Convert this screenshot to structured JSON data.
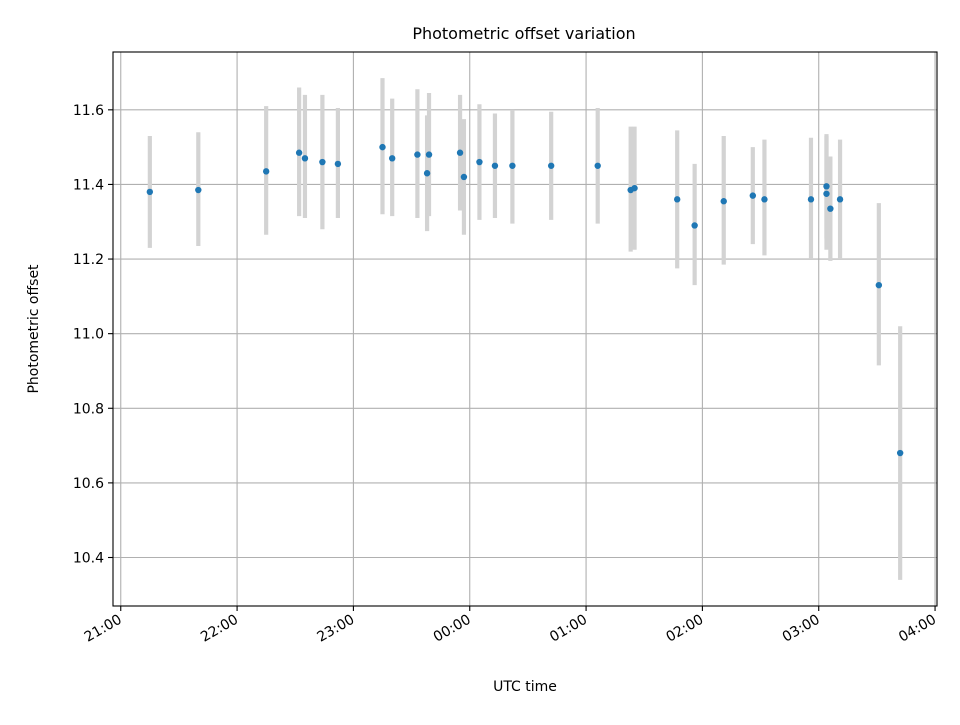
{
  "chart_data": {
    "type": "scatter",
    "title": "Photometric offset variation",
    "xlabel": "UTC time",
    "ylabel": "Photometric offset",
    "grid": true,
    "xlim": [
      "20:56",
      "04:01"
    ],
    "ylim": [
      10.27,
      11.755
    ],
    "x_ticks": [
      "21:00",
      "22:00",
      "23:00",
      "00:00",
      "01:00",
      "02:00",
      "03:00",
      "04:00"
    ],
    "y_ticks": [
      "10.4",
      "10.6",
      "10.8",
      "11.0",
      "11.2",
      "11.4",
      "11.6"
    ],
    "colors": {
      "marker": "#1f77b4",
      "errorbar": "#d3d3d3"
    },
    "points": [
      {
        "time": "21:15",
        "y": 11.38,
        "low": 11.23,
        "high": 11.53
      },
      {
        "time": "21:40",
        "y": 11.385,
        "low": 11.235,
        "high": 11.54
      },
      {
        "time": "22:15",
        "y": 11.435,
        "low": 11.265,
        "high": 11.61
      },
      {
        "time": "22:32",
        "y": 11.485,
        "low": 11.315,
        "high": 11.66
      },
      {
        "time": "22:35",
        "y": 11.47,
        "low": 11.31,
        "high": 11.64
      },
      {
        "time": "22:44",
        "y": 11.46,
        "low": 11.28,
        "high": 11.64
      },
      {
        "time": "22:52",
        "y": 11.455,
        "low": 11.31,
        "high": 11.605
      },
      {
        "time": "23:15",
        "y": 11.5,
        "low": 11.32,
        "high": 11.685
      },
      {
        "time": "23:20",
        "y": 11.47,
        "low": 11.315,
        "high": 11.63
      },
      {
        "time": "23:33",
        "y": 11.48,
        "low": 11.31,
        "high": 11.655
      },
      {
        "time": "23:38",
        "y": 11.43,
        "low": 11.275,
        "high": 11.585
      },
      {
        "time": "23:39",
        "y": 11.48,
        "low": 11.315,
        "high": 11.645
      },
      {
        "time": "23:55",
        "y": 11.485,
        "low": 11.33,
        "high": 11.64
      },
      {
        "time": "23:57",
        "y": 11.42,
        "low": 11.265,
        "high": 11.575
      },
      {
        "time": "00:05",
        "y": 11.46,
        "low": 11.305,
        "high": 11.615
      },
      {
        "time": "00:13",
        "y": 11.45,
        "low": 11.31,
        "high": 11.59
      },
      {
        "time": "00:22",
        "y": 11.45,
        "low": 11.295,
        "high": 11.6
      },
      {
        "time": "00:42",
        "y": 11.45,
        "low": 11.305,
        "high": 11.595
      },
      {
        "time": "01:06",
        "y": 11.45,
        "low": 11.295,
        "high": 11.605
      },
      {
        "time": "01:23",
        "y": 11.385,
        "low": 11.22,
        "high": 11.555
      },
      {
        "time": "01:25",
        "y": 11.39,
        "low": 11.225,
        "high": 11.555
      },
      {
        "time": "01:47",
        "y": 11.36,
        "low": 11.175,
        "high": 11.545
      },
      {
        "time": "01:56",
        "y": 11.29,
        "low": 11.13,
        "high": 11.455
      },
      {
        "time": "02:11",
        "y": 11.355,
        "low": 11.185,
        "high": 11.53
      },
      {
        "time": "02:26",
        "y": 11.37,
        "low": 11.24,
        "high": 11.5
      },
      {
        "time": "02:32",
        "y": 11.36,
        "low": 11.21,
        "high": 11.52
      },
      {
        "time": "02:56",
        "y": 11.36,
        "low": 11.2,
        "high": 11.525
      },
      {
        "time": "03:04",
        "y": 11.395,
        "low": 11.255,
        "high": 11.535
      },
      {
        "time": "03:04",
        "y": 11.375,
        "low": 11.225,
        "high": 11.53
      },
      {
        "time": "03:06",
        "y": 11.335,
        "low": 11.195,
        "high": 11.475
      },
      {
        "time": "03:11",
        "y": 11.36,
        "low": 11.2,
        "high": 11.52
      },
      {
        "time": "03:31",
        "y": 11.13,
        "low": 10.915,
        "high": 11.35
      },
      {
        "time": "03:42",
        "y": 10.68,
        "low": 10.34,
        "high": 11.02
      }
    ]
  }
}
